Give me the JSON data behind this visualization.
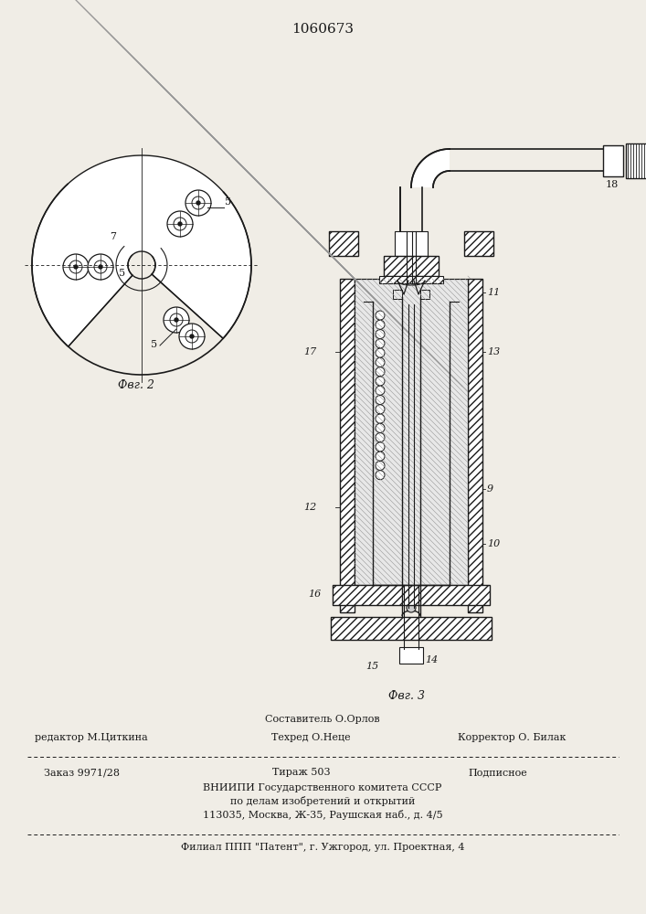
{
  "patent_number": "1060673",
  "bg_color": "#f0ede6",
  "line_color": "#1a1a1a",
  "hatch_color": "#555555",
  "fig2_caption": "Фвг. 2",
  "fig3_caption": "Фвг. 3",
  "footer_line1": "Составитель О.Орлов",
  "footer_editor": "редактор М.Циткина",
  "footer_tech": "Техред О.Неце",
  "footer_correct": "Корректор О. Билак",
  "footer_order": "Заказ 9971/28",
  "footer_copies": "Тираж 503",
  "footer_sub": "Подписное",
  "footer_org1": "ВНИИПИ Государственного комитета СССР",
  "footer_org2": "по делам изобретений и открытий",
  "footer_addr": "113035, Москва, Ж-35, Раушская наб., д. 4/5",
  "footer_branch": "Филиал ППП \"Патент\", г. Ужгород, ул. Проектная, 4"
}
